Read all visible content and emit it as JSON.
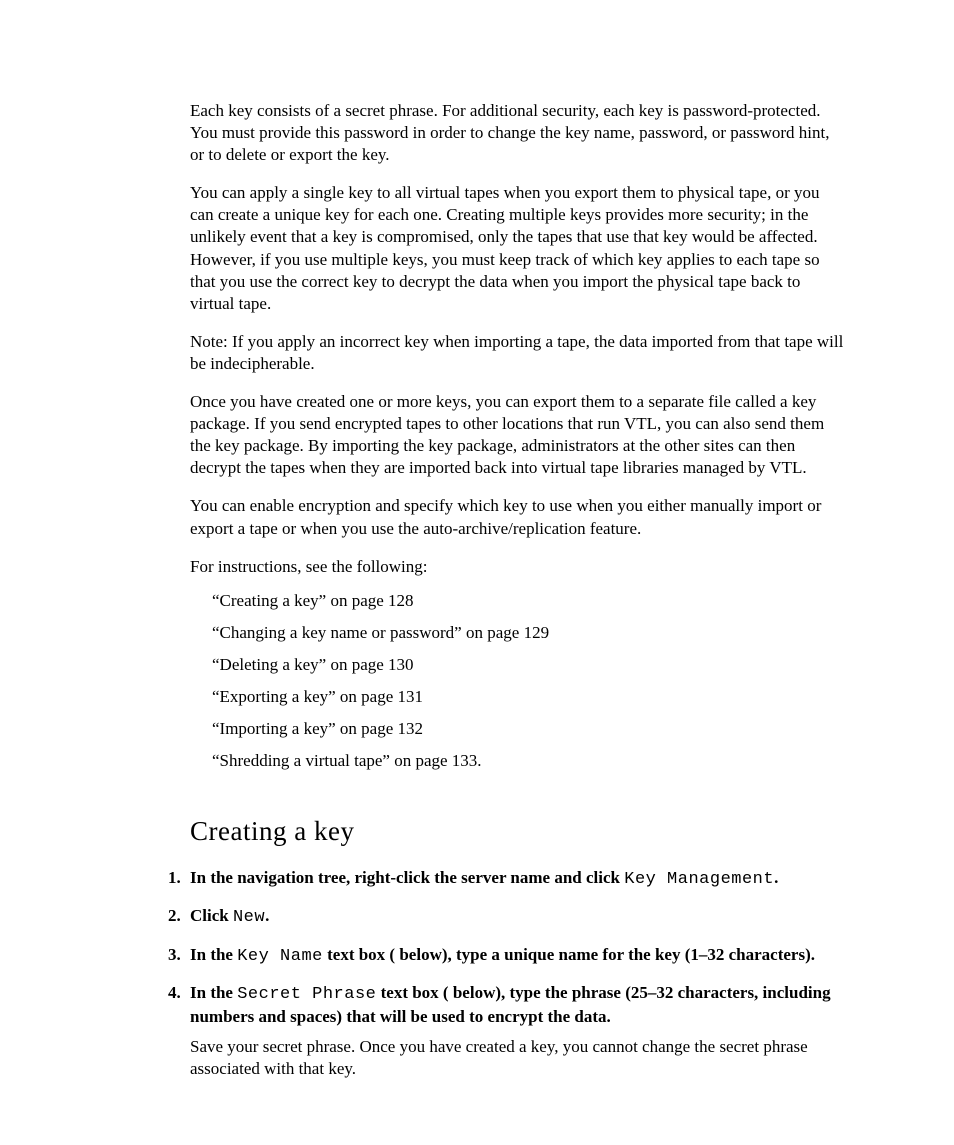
{
  "paragraphs": {
    "p1": "Each key consists of a secret phrase. For additional security, each key is password-protected. You must provide this password in order to change the key name, password, or password hint, or to delete or export the key.",
    "p2": "You can apply a single key to all virtual tapes when you export them to physical tape, or you can create a unique key for each one. Creating multiple keys provides more security; in the unlikely event that a key is compromised, only the tapes that use that key would be affected. However, if you use multiple keys, you must keep track of which key applies to each tape so that you use the correct key to decrypt the data when you import the physical tape back to virtual tape.",
    "p3": "Note: If you apply an incorrect key when importing a tape, the data imported from that tape will be indecipherable.",
    "p4": "Once you have created one or more keys, you can export them to a separate file called a key package. If you send encrypted tapes to other locations that run VTL, you can also send them the key package. By importing the key package, administrators at the other sites can then decrypt the tapes when they are imported back into virtual tape libraries managed by VTL.",
    "p5": "You can enable encryption and specify which key to use when you either manually import or export a tape or when you use the auto-archive/replication feature.",
    "p6": "For instructions, see the following:"
  },
  "refs": {
    "r1": "“Creating a key” on page 128",
    "r2": "“Changing a key name or password” on page 129",
    "r3": "“Deleting a key” on page 130",
    "r4": "“Exporting a key” on page 131",
    "r5": "“Importing a key” on page 132",
    "r6": "“Shredding a virtual tape” on page 133."
  },
  "section_title": "Creating a key",
  "steps": {
    "s1": {
      "a": "In the navigation tree, right-click the server name and click ",
      "m": "Key Management",
      "b": "."
    },
    "s2": {
      "a": "Click ",
      "m": "New",
      "b": "."
    },
    "s3": {
      "a": "In the ",
      "m": "Key Name",
      "b": " text box (   below), type a unique name for the key (1–32 characters)."
    },
    "s4": {
      "a": "In the ",
      "m": "Secret Phrase",
      "b": " text box (   below), type the phrase (25–32 characters, including numbers and spaces) that will be used to encrypt the data.",
      "note": "Save your secret phrase. Once you have created a key, you cannot change the secret phrase associated with that key."
    }
  }
}
